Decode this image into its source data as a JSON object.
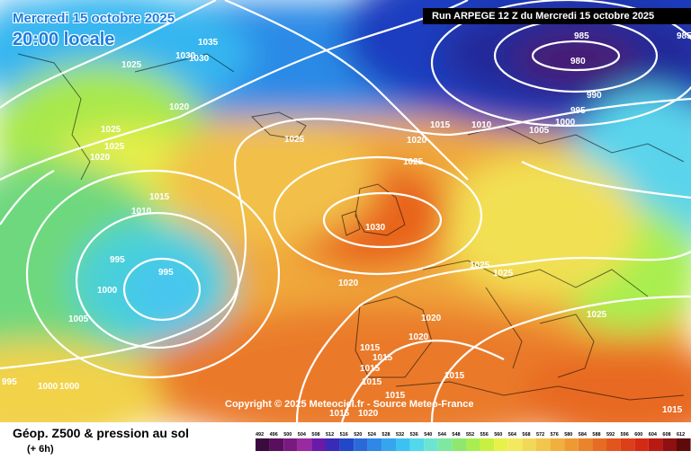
{
  "header": {
    "run_title": "Run ARPEGE 12 Z du Mercredi 15 octobre 2025",
    "date_line": "Mercredi 15 octobre 2025",
    "time_line": "20:00 locale"
  },
  "map": {
    "copyright": "Copyright © 2025 Meteociel.fr - Source Meteo-France",
    "isobar_labels": [
      "1035",
      "1030",
      "1025",
      "1030",
      "1020",
      "1025",
      "1025",
      "1020",
      "1015",
      "1010",
      "995",
      "995",
      "1000",
      "1005",
      "995",
      "1000",
      "1000",
      "1025",
      "1030",
      "1020",
      "1025",
      "1020",
      "1015",
      "1010",
      "1005",
      "1000",
      "995",
      "990",
      "985",
      "980",
      "985",
      "1025",
      "1025",
      "1025",
      "1020",
      "1020",
      "1015",
      "1015",
      "1015",
      "1015",
      "1015",
      "1015",
      "1020",
      "1015",
      "1015"
    ],
    "colors": {
      "low_center": "#3a0a45",
      "high_center": "#e8641a",
      "isobar": "#ffffff"
    }
  },
  "footer": {
    "parameter_title": "Géop. Z500 & pression au sol",
    "lead_time": "(+ 6h)"
  },
  "colorbar": {
    "labels": [
      "492",
      "496",
      "500",
      "504",
      "508",
      "512",
      "516",
      "520",
      "524",
      "528",
      "532",
      "536",
      "540",
      "544",
      "548",
      "552",
      "556",
      "560",
      "564",
      "568",
      "572",
      "576",
      "580",
      "584",
      "588",
      "592",
      "596",
      "600",
      "604",
      "608",
      "612"
    ],
    "colors": [
      "#3b0a3f",
      "#5a0f5e",
      "#7a1a80",
      "#9a2aa0",
      "#6a1aa8",
      "#3a2ab8",
      "#2048c8",
      "#2a6ad8",
      "#2f88e6",
      "#35a6ee",
      "#3cc2f2",
      "#52d8ec",
      "#6ce4d0",
      "#7ee8a0",
      "#8ee870",
      "#a8ee50",
      "#c8f040",
      "#e8f04a",
      "#f4e860",
      "#f2d858",
      "#f2c64a",
      "#f0b03e",
      "#ee9a34",
      "#ea842c",
      "#e66c24",
      "#e2561e",
      "#dc4018",
      "#d42a14",
      "#b81a12",
      "#8e1010",
      "#5e0a0a"
    ]
  }
}
